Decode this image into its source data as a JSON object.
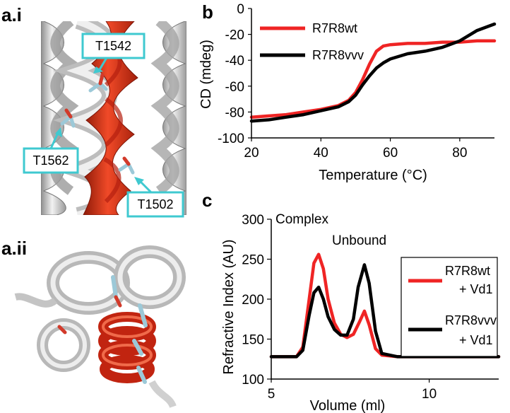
{
  "panels": {
    "a_i": {
      "label": "a.i",
      "residues": [
        "T1542",
        "T1562",
        "T1502"
      ]
    },
    "a_ii": {
      "label": "a.ii"
    }
  },
  "colors": {
    "red": "#ef2424",
    "black": "#000000",
    "helix_red": "#cf2c10",
    "helix_grey": "#c9c9c9",
    "callout": "#3fc9d0"
  },
  "chart_data": [
    {
      "panel": "b",
      "type": "line",
      "xlabel": "Temperature (°C)",
      "ylabel": "CD  (mdeg)",
      "xlim": [
        20,
        90
      ],
      "ylim": [
        -100,
        0
      ],
      "xticks": [
        20,
        40,
        60,
        80
      ],
      "yticks": [
        0,
        -20,
        -40,
        -60,
        -80,
        -100
      ],
      "legend_position": "top-right",
      "series": [
        {
          "name": "R7R8wt",
          "color": "#ef2424",
          "x": [
            20,
            25,
            30,
            35,
            40,
            45,
            48,
            50,
            52,
            54,
            56,
            58,
            60,
            65,
            70,
            75,
            80,
            85,
            90
          ],
          "y": [
            -84,
            -83,
            -82,
            -80,
            -78,
            -75,
            -71,
            -65,
            -55,
            -43,
            -33,
            -29,
            -28,
            -27,
            -27,
            -26,
            -26,
            -25,
            -25
          ]
        },
        {
          "name": "R7R8vvv",
          "color": "#000000",
          "x": [
            20,
            25,
            30,
            35,
            40,
            45,
            48,
            50,
            52,
            54,
            56,
            58,
            60,
            65,
            70,
            75,
            80,
            85,
            90
          ],
          "y": [
            -87,
            -86,
            -84,
            -82,
            -79,
            -76,
            -72,
            -67,
            -59,
            -52,
            -46,
            -42,
            -39,
            -35,
            -33,
            -30,
            -25,
            -17,
            -12
          ]
        }
      ]
    },
    {
      "panel": "c",
      "type": "line",
      "xlabel": "Volume (ml)",
      "ylabel": "Refractive  Index (AU)",
      "xlim": [
        5,
        12.2
      ],
      "ylim": [
        100,
        300
      ],
      "xticks": [
        5,
        10
      ],
      "yticks": [
        100,
        150,
        200,
        250,
        300
      ],
      "annotations": [
        "Complex",
        "Unbound"
      ],
      "legend_position": "right",
      "series": [
        {
          "name": "R7R8wt\n+ Vd1",
          "legend_lines": [
            "R7R8wt",
            "+ Vd1"
          ],
          "color": "#ef2424",
          "x": [
            5,
            5.8,
            6.0,
            6.2,
            6.35,
            6.5,
            6.65,
            6.8,
            7.0,
            7.2,
            7.4,
            7.6,
            7.8,
            7.95,
            8.1,
            8.3,
            8.5,
            9.0,
            10,
            11,
            12.2
          ],
          "y": [
            128,
            128,
            140,
            200,
            245,
            256,
            238,
            200,
            170,
            156,
            152,
            156,
            172,
            185,
            168,
            138,
            130,
            128,
            128,
            128,
            128
          ]
        },
        {
          "name": "R7R8vvv\n+ Vd1",
          "legend_lines": [
            "R7R8vvv",
            "+ Vd1"
          ],
          "color": "#000000",
          "x": [
            5,
            5.8,
            6.0,
            6.2,
            6.35,
            6.5,
            6.65,
            6.8,
            7.0,
            7.2,
            7.4,
            7.6,
            7.75,
            7.95,
            8.1,
            8.3,
            8.5,
            9.0,
            10,
            11,
            12.2
          ],
          "y": [
            128,
            128,
            136,
            180,
            208,
            215,
            200,
            178,
            162,
            155,
            155,
            175,
            215,
            243,
            220,
            160,
            132,
            128,
            128,
            128,
            128
          ]
        }
      ]
    }
  ]
}
